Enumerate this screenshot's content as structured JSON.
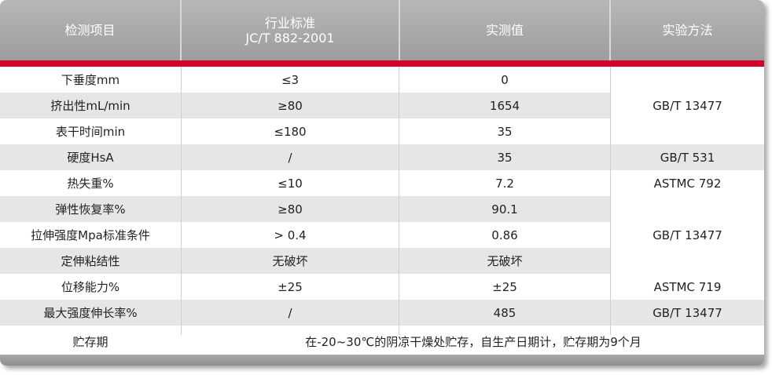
{
  "table": {
    "headers": [
      "检测项目",
      "行业标准",
      "JC/T 882-2001",
      "实测值",
      "实验方法"
    ],
    "rows": [
      [
        "下垂度mm",
        "≤3",
        "0"
      ],
      [
        "挤出性mL/min",
        "≥80",
        "1654"
      ],
      [
        "表干时间min",
        "≤180",
        "35"
      ],
      [
        "硬度HsA",
        "/",
        "35"
      ],
      [
        "热失重%",
        "≤10",
        "7.2"
      ],
      [
        "弹性恢复率%",
        "≥80",
        "90.1"
      ],
      [
        "拉伸强度Mpa标准条件",
        "> 0.4",
        "0.86"
      ],
      [
        "定伸粘结性",
        "无破坏",
        "无破坏"
      ],
      [
        "位移能力%",
        "±25",
        "±25"
      ],
      [
        "最大强度伸长率%",
        "/",
        "485"
      ]
    ],
    "methods": [
      "GB/T 13477",
      "GB/T 531",
      "ASTMC 792",
      "GB/T 13477",
      "ASTMC 719",
      "GB/T 13477"
    ],
    "storage_label": "贮存期",
    "storage_value": "在-20~30℃的阴凉干燥处贮存，自生产日期计，贮存期为9个月"
  },
  "colors": {
    "header_bg": "#aaaaaa",
    "accent_red": "#d3002c",
    "row_shade": "#e6e6e6"
  }
}
